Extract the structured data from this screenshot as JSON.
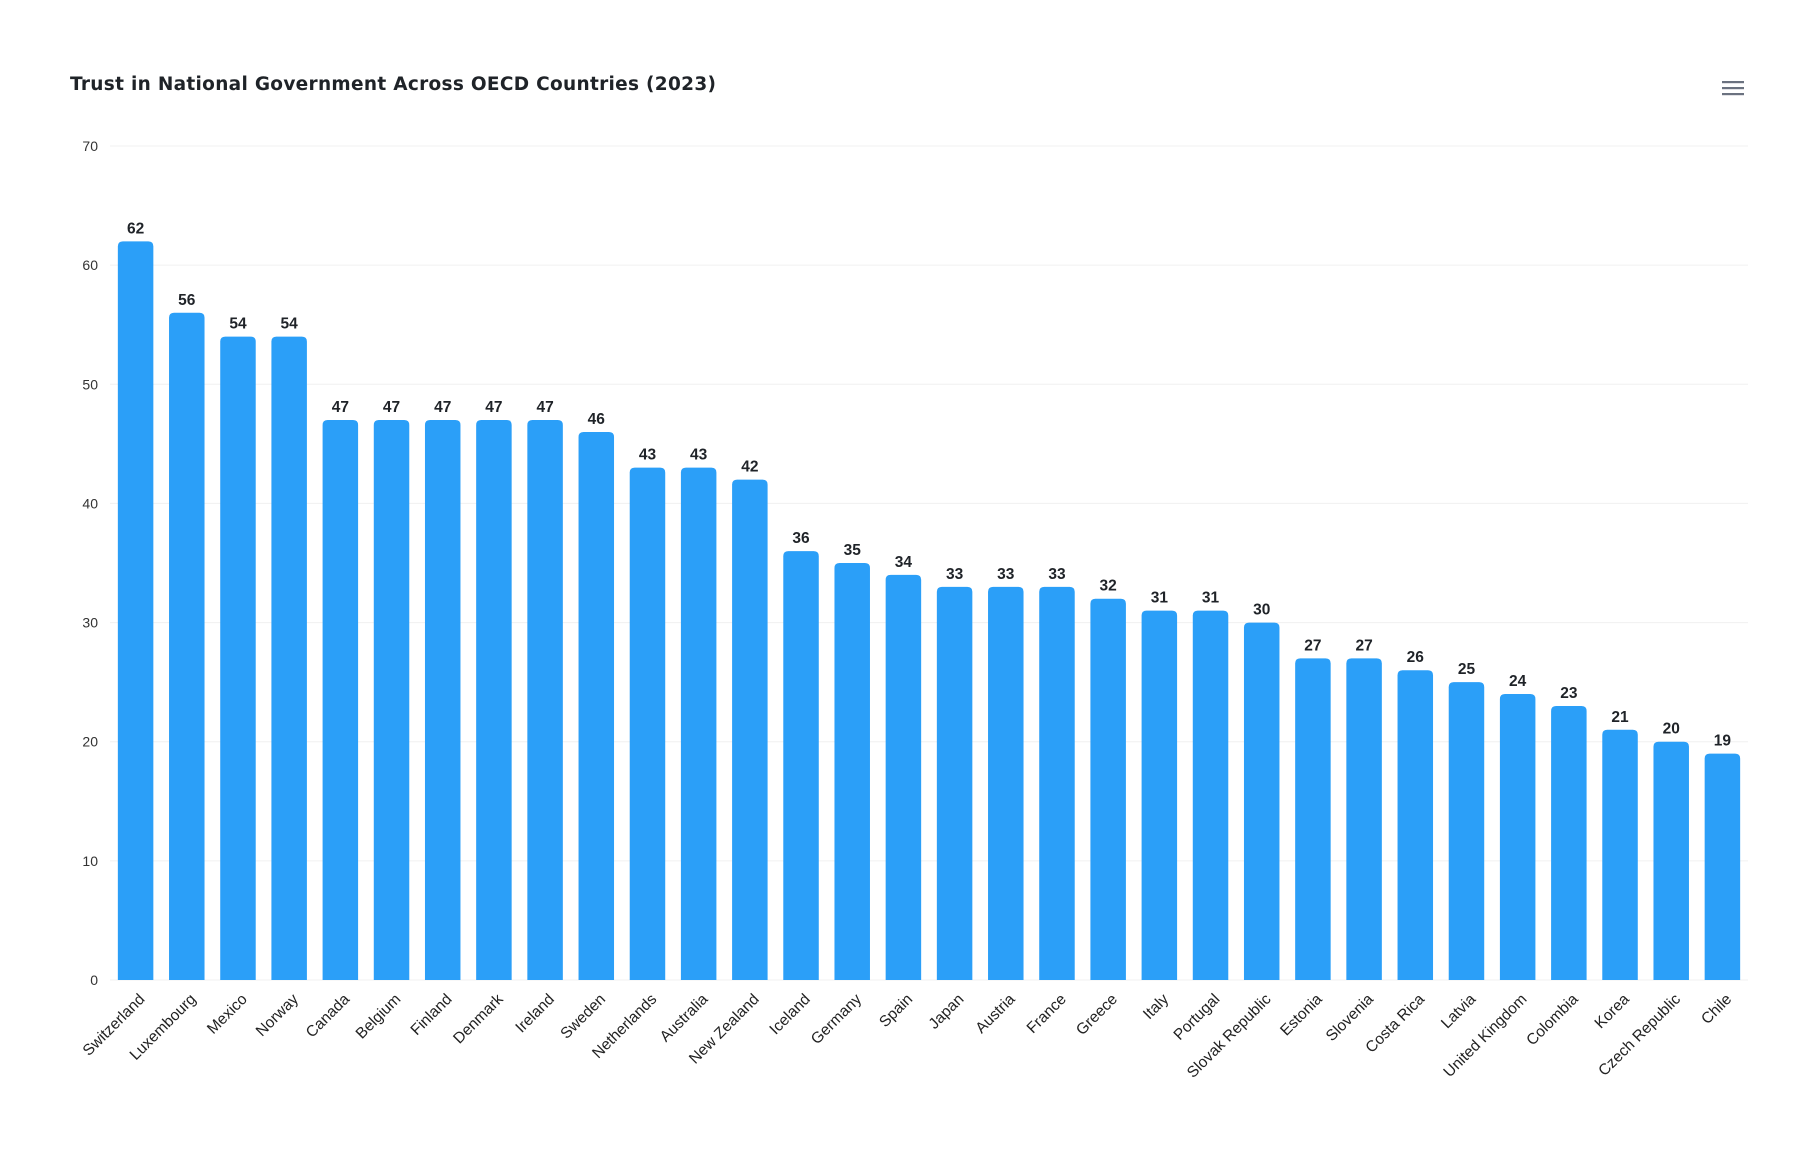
{
  "chart_data": {
    "type": "bar",
    "title": "Trust in National Government Across OECD Countries (2023)",
    "categories": [
      "Switzerland",
      "Luxembourg",
      "Mexico",
      "Norway",
      "Canada",
      "Belgium",
      "Finland",
      "Denmark",
      "Ireland",
      "Sweden",
      "Netherlands",
      "Australia",
      "New Zealand",
      "Iceland",
      "Germany",
      "Spain",
      "Japan",
      "Austria",
      "France",
      "Greece",
      "Italy",
      "Portugal",
      "Slovak Republic",
      "Estonia",
      "Slovenia",
      "Costa Rica",
      "Latvia",
      "United Kingdom",
      "Colombia",
      "Korea",
      "Czech Republic",
      "Chile"
    ],
    "values": [
      62,
      56,
      54,
      54,
      47,
      47,
      47,
      47,
      47,
      46,
      43,
      43,
      42,
      36,
      35,
      34,
      33,
      33,
      33,
      32,
      31,
      31,
      30,
      27,
      27,
      26,
      25,
      24,
      23,
      21,
      20,
      19
    ],
    "xlabel": "",
    "ylabel": "",
    "ylim": [
      0,
      70
    ],
    "yticks": [
      0,
      10,
      20,
      30,
      40,
      50,
      60,
      70
    ],
    "grid": true,
    "data_labels": true,
    "bar_color": "#2b9ff8"
  },
  "menu": {
    "icon": "hamburger-menu-icon"
  }
}
